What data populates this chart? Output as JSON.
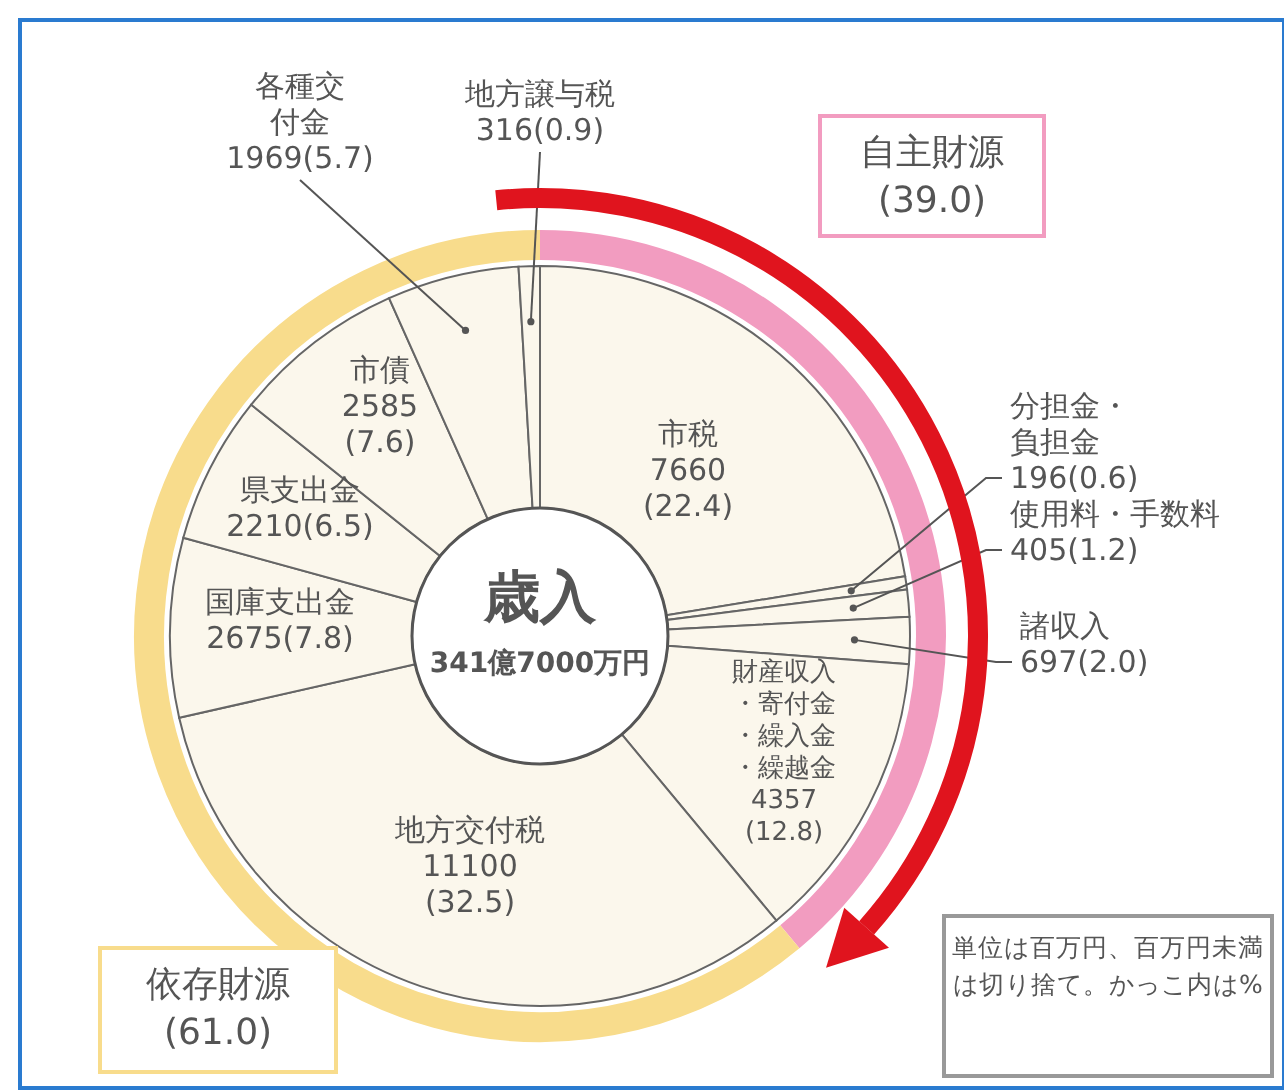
{
  "chart_data": {
    "type": "donut",
    "title": "歳入",
    "subtitle": "341億7000万円",
    "categories": [
      "市税",
      "分担金・負担金",
      "使用料・手数料",
      "諸収入",
      "財産収入・寄付金・繰入金・繰越金",
      "地方交付税",
      "国庫支出金",
      "県支出金",
      "市債",
      "各種交付金",
      "地方譲与税"
    ],
    "series": [
      {
        "values": [
          7660,
          196,
          405,
          697,
          4357,
          11100,
          2675,
          2210,
          2585,
          1969,
          316
        ],
        "value_labels": [
          "7660(22.4)",
          "196(0.6)",
          "405(1.2)",
          "697(2.0)",
          "4357(12.8)",
          "11100(32.5)",
          "2675(7.8)",
          "2210(6.5)",
          "2585(7.6)",
          "1969(5.7)",
          "316(0.9)"
        ],
        "colors": [
          "#fbf7ec",
          "#fbf7ec",
          "#fbf7ec",
          "#fbf7ec",
          "#fbf7ec",
          "#fbf7ec",
          "#fbf7ec",
          "#fbf7ec",
          "#fbf7ec",
          "#fbf7ec",
          "#fbf7ec"
        ]
      }
    ],
    "annotations": [
      "自主財源 (39.0)",
      "依存財源 (61.0)",
      "単位は百万円、百万円未満は切り捨て。かっこ内は%"
    ]
  }
}
